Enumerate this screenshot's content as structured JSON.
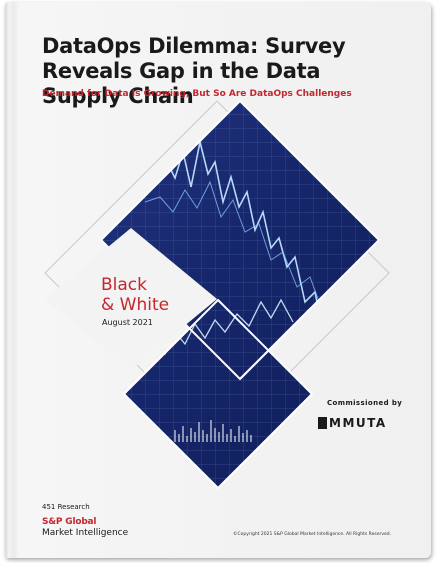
{
  "cover": {
    "title": "DataOps Dilemma: Survey Reveals Gap in the Data Supply Chain",
    "subtitle": "Demand for Data Is Growing, But So Are DataOps Challenges",
    "series_label_line1": "Black",
    "series_label_line2": "& White",
    "date": "August 2021",
    "commissioned_by": "Commissioned by",
    "sponsor_name": "MMUTA",
    "research": "451 Research",
    "publisher": "S&P Global",
    "publisher_sub": "Market Intelligence",
    "copyright": "©Copyright 2021 S&P Global Market Intelligence. All Rights Reserved."
  },
  "colors": {
    "accent_red": "#c4262e",
    "text_dark": "#1a1a1a",
    "panel_navy": "#14266a",
    "chart_line": "#bfe3ff",
    "background": "#f0f0f0"
  }
}
